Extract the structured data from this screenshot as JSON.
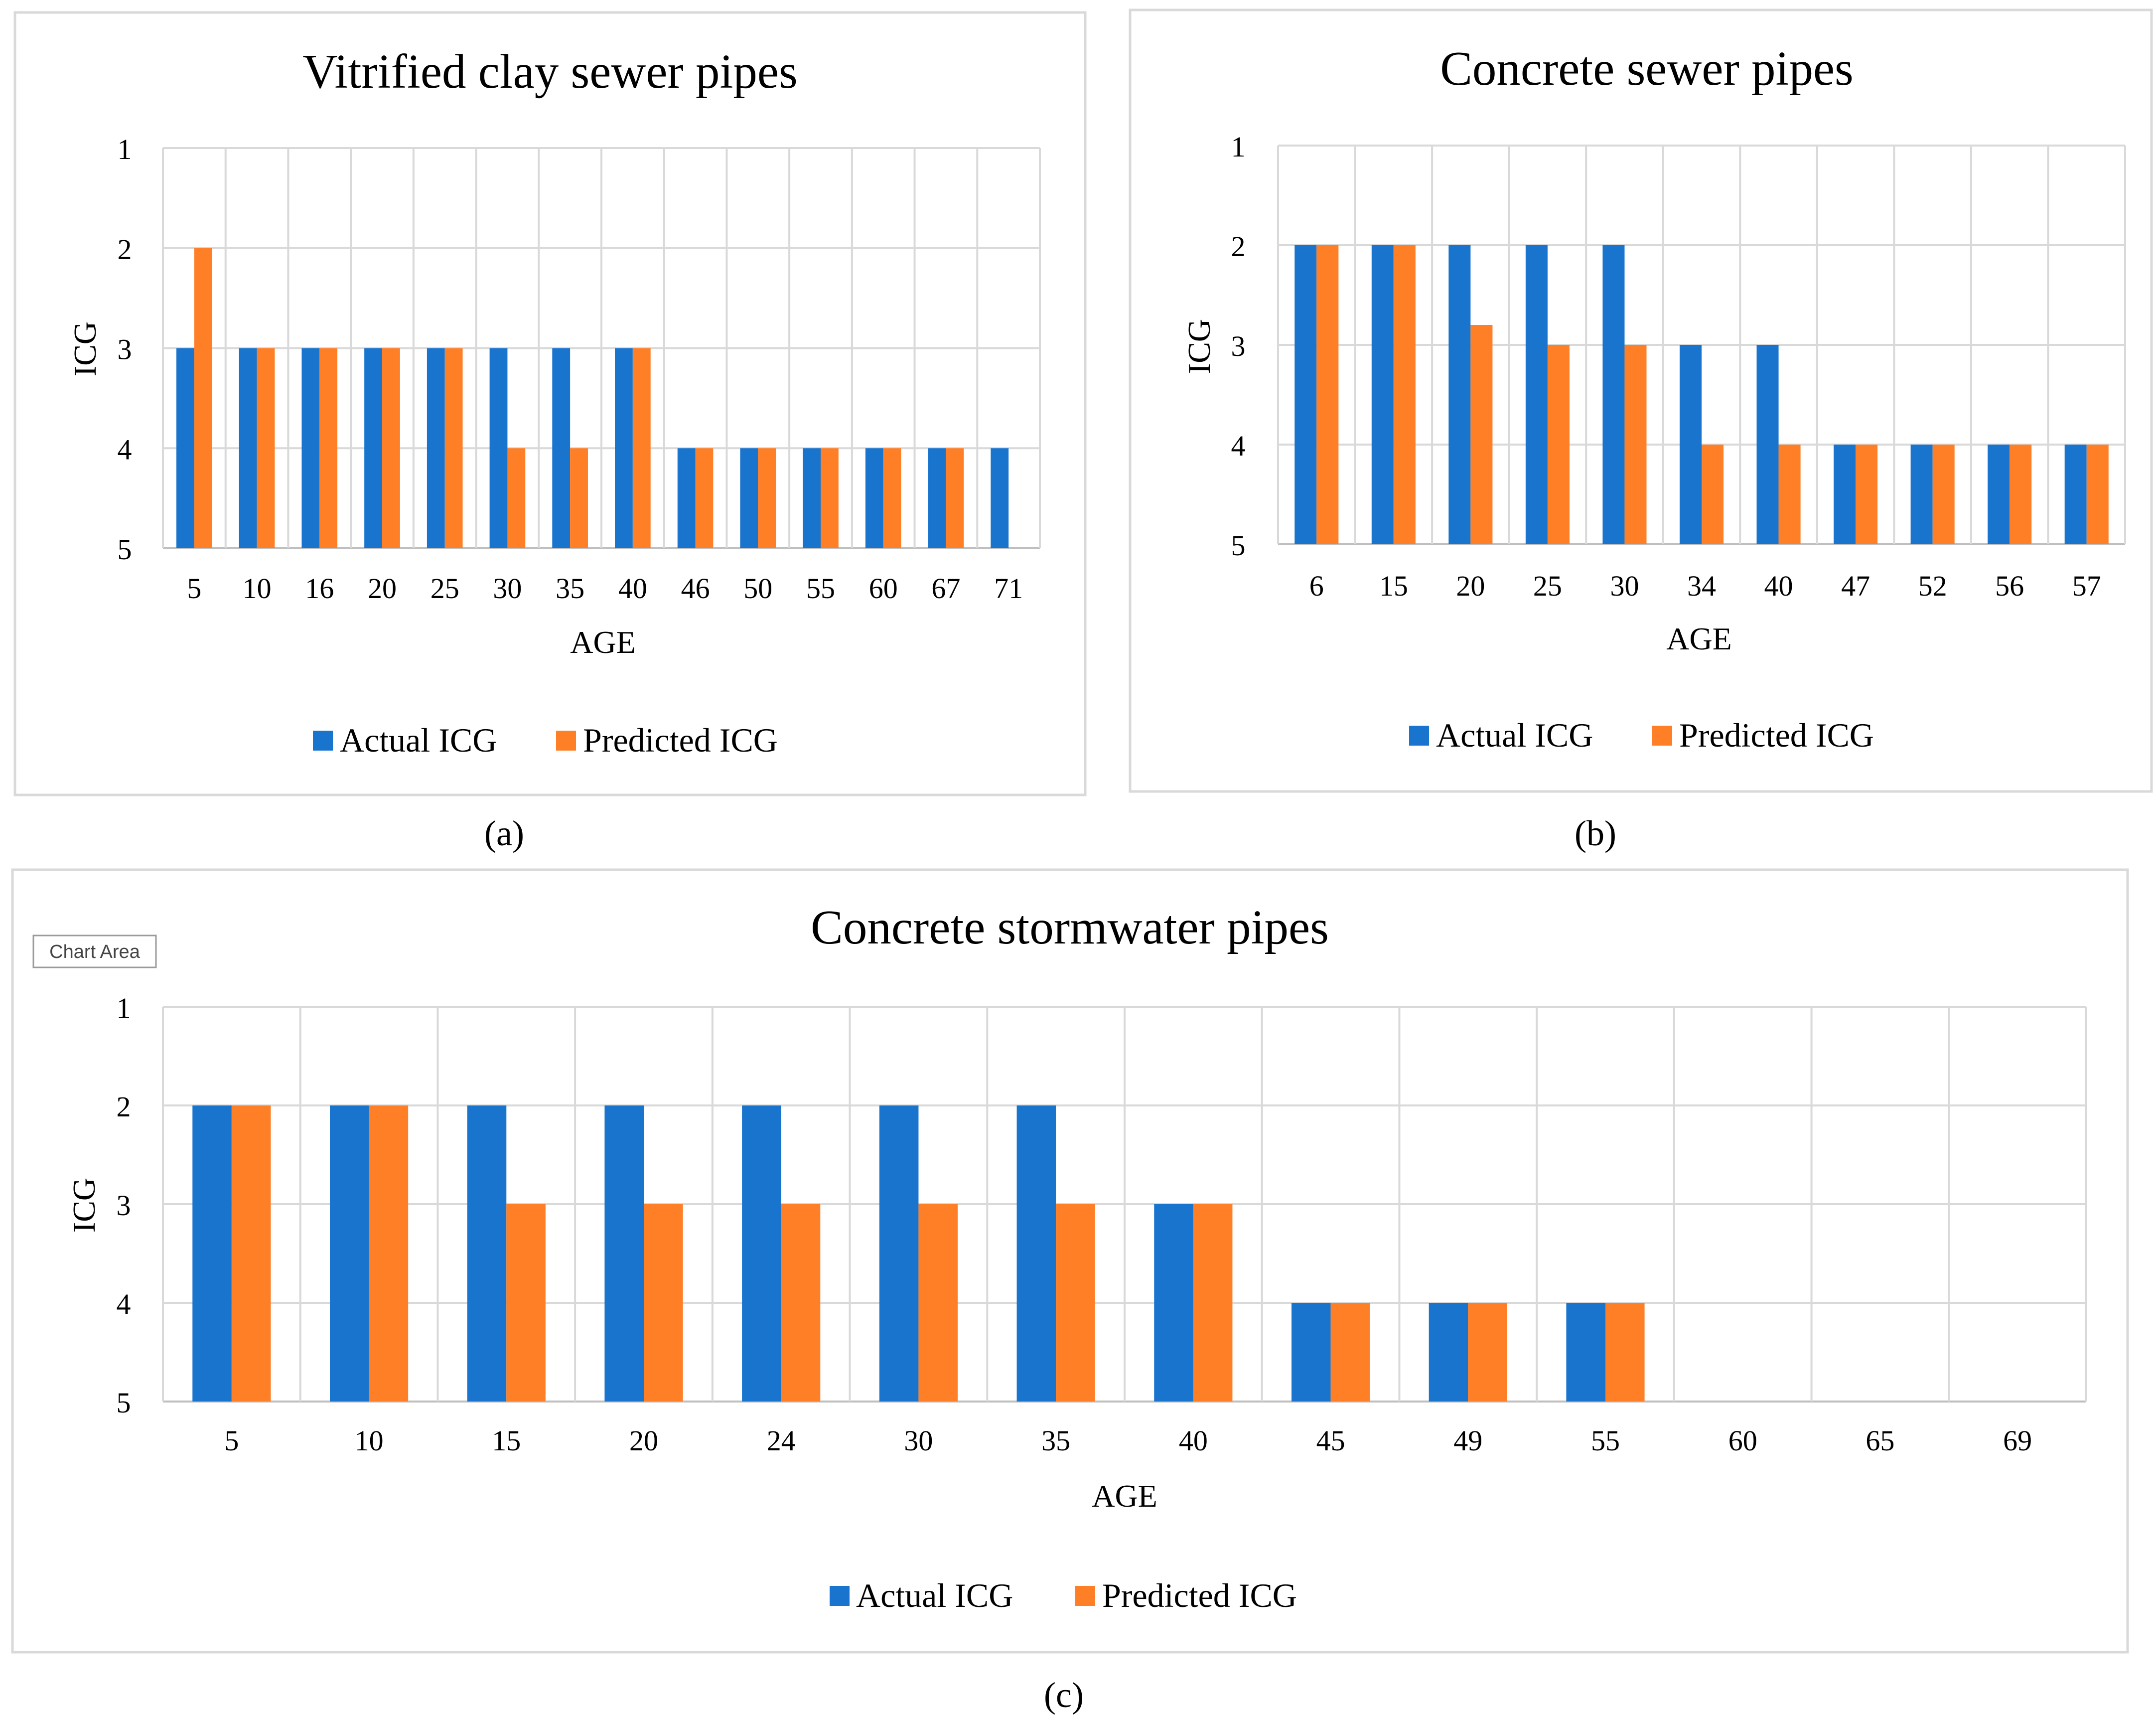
{
  "colors": {
    "actual": "#1874CD",
    "predicted": "#FF7F27",
    "grid": "#D9D9D9",
    "frame": "#D9D9D9",
    "axis": "#BFBFBF"
  },
  "tooltip": {
    "label": "Chart Area"
  },
  "chart_data": [
    {
      "type": "bar",
      "title": "Vitrified clay sewer pipes",
      "caption": "(a)",
      "xlabel": "AGE",
      "ylabel": "ICG",
      "y_reversed": true,
      "ylim": [
        1,
        5
      ],
      "yticks": [
        "1",
        "2",
        "3",
        "4",
        "5"
      ],
      "categories": [
        "5",
        "10",
        "16",
        "20",
        "25",
        "30",
        "35",
        "40",
        "46",
        "50",
        "55",
        "60",
        "67",
        "71"
      ],
      "series": [
        {
          "name": "Actual ICG",
          "values": [
            3,
            3,
            3,
            3,
            3,
            3,
            3,
            3,
            4,
            4,
            4,
            4,
            4,
            4
          ]
        },
        {
          "name": "Predicted ICG",
          "values": [
            2,
            3,
            3,
            3,
            3,
            4,
            4,
            3,
            4,
            4,
            4,
            4,
            4,
            null
          ]
        }
      ],
      "legend": "bottom"
    },
    {
      "type": "bar",
      "title": "Concrete sewer pipes",
      "caption": "(b)",
      "xlabel": "AGE",
      "ylabel": "ICG",
      "y_reversed": true,
      "ylim": [
        1,
        5
      ],
      "yticks": [
        "1",
        "2",
        "3",
        "4",
        "5"
      ],
      "categories": [
        "6",
        "15",
        "20",
        "25",
        "30",
        "34",
        "40",
        "47",
        "52",
        "56",
        "57"
      ],
      "series": [
        {
          "name": "Actual ICG",
          "values": [
            2,
            2,
            2,
            2,
            2,
            3,
            3,
            4,
            4,
            4,
            4
          ]
        },
        {
          "name": "Predicted ICG",
          "values": [
            2,
            2,
            2.8,
            3,
            3,
            4,
            4,
            4,
            4,
            4,
            4
          ]
        }
      ],
      "legend": "bottom"
    },
    {
      "type": "bar",
      "title": "Concrete stormwater pipes",
      "caption": "(c)",
      "xlabel": "AGE",
      "ylabel": "ICG",
      "y_reversed": true,
      "ylim": [
        1,
        5
      ],
      "yticks": [
        "1",
        "2",
        "3",
        "4",
        "5"
      ],
      "categories": [
        "5",
        "10",
        "15",
        "20",
        "24",
        "30",
        "35",
        "40",
        "45",
        "49",
        "55",
        "60",
        "65",
        "69"
      ],
      "series": [
        {
          "name": "Actual ICG",
          "values": [
            2,
            2,
            2,
            2,
            2,
            2,
            2,
            3,
            4,
            4,
            4,
            null,
            null,
            null
          ]
        },
        {
          "name": "Predicted ICG",
          "values": [
            2,
            2,
            3,
            3,
            3,
            3,
            3,
            3,
            4,
            4,
            4,
            null,
            null,
            null
          ]
        }
      ],
      "legend": "bottom"
    }
  ]
}
